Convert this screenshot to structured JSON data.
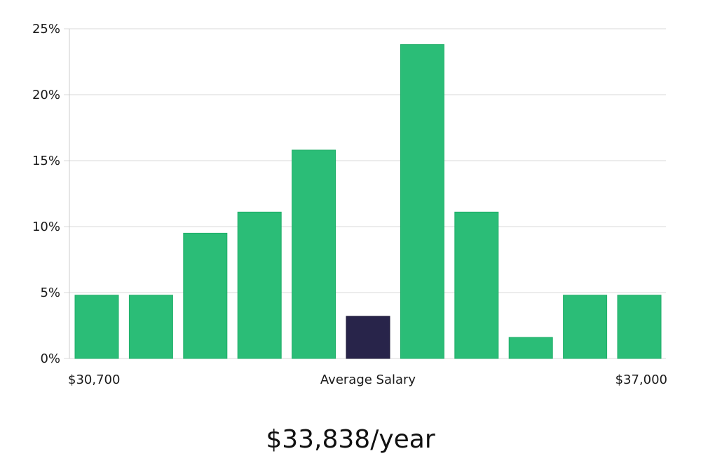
{
  "chart_data": {
    "type": "bar",
    "title": "",
    "xlabel": "Average Salary",
    "ylabel": "",
    "ylim": [
      0,
      25
    ],
    "yticks": [
      0,
      5,
      10,
      15,
      20,
      25
    ],
    "ytick_labels": [
      "0%",
      "5%",
      "10%",
      "15%",
      "20%",
      "25%"
    ],
    "grid": true,
    "x_min_label": "$30,700",
    "x_max_label": "$37,000",
    "x_center_label": "Average Salary",
    "values": [
      4.8,
      4.8,
      9.5,
      11.1,
      15.8,
      3.2,
      23.8,
      11.1,
      1.6,
      4.8,
      4.8
    ],
    "highlight_index": 5,
    "colors": {
      "bar": "#2bbd77",
      "bar_border": "#1fae68",
      "highlight": "#28244a",
      "grid": "#d9d9d9",
      "axis": "#cccccc"
    }
  },
  "summary": {
    "salary": "$33,838/year"
  }
}
